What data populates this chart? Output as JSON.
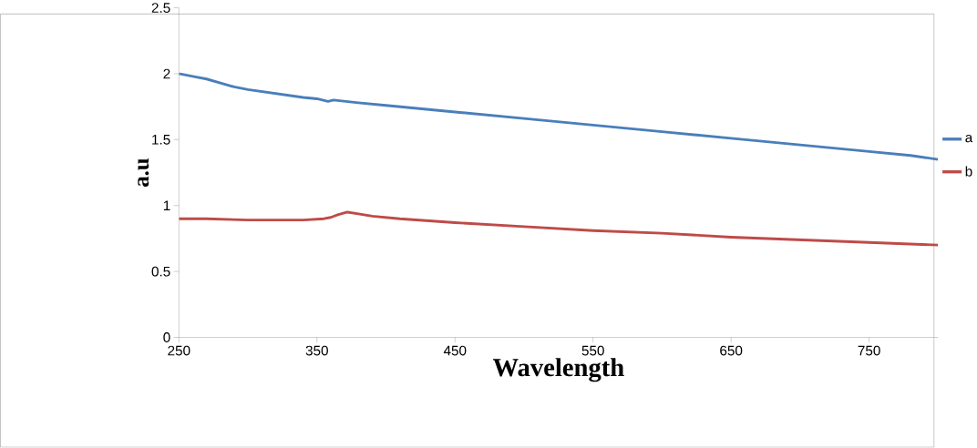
{
  "chart_data": {
    "type": "line",
    "xlabel": "Wavelength",
    "ylabel": "a.u",
    "xlim": [
      250,
      800
    ],
    "xticks": [
      250,
      350,
      450,
      550,
      650,
      750
    ],
    "ylim": [
      0,
      2.5
    ],
    "yticks": [
      0,
      0.5,
      1,
      1.5,
      2,
      2.5
    ],
    "grid": false,
    "legend": "right",
    "line_style": "solid",
    "series": [
      {
        "name": "a",
        "color": "#4a7ebb",
        "x": [
          250,
          260,
          270,
          280,
          290,
          300,
          320,
          340,
          350,
          358,
          362,
          380,
          400,
          450,
          500,
          550,
          600,
          650,
          700,
          750,
          780,
          800
        ],
        "values": [
          2.0,
          1.98,
          1.96,
          1.93,
          1.9,
          1.88,
          1.85,
          1.82,
          1.81,
          1.79,
          1.8,
          1.78,
          1.76,
          1.71,
          1.66,
          1.61,
          1.56,
          1.51,
          1.46,
          1.41,
          1.38,
          1.35
        ]
      },
      {
        "name": "b",
        "color": "#be4b48",
        "x": [
          250,
          270,
          300,
          320,
          340,
          355,
          360,
          365,
          372,
          378,
          390,
          410,
          450,
          500,
          550,
          600,
          650,
          700,
          750,
          800
        ],
        "values": [
          0.9,
          0.9,
          0.89,
          0.89,
          0.89,
          0.9,
          0.91,
          0.93,
          0.95,
          0.94,
          0.92,
          0.9,
          0.87,
          0.84,
          0.81,
          0.79,
          0.76,
          0.74,
          0.72,
          0.7
        ]
      }
    ]
  }
}
